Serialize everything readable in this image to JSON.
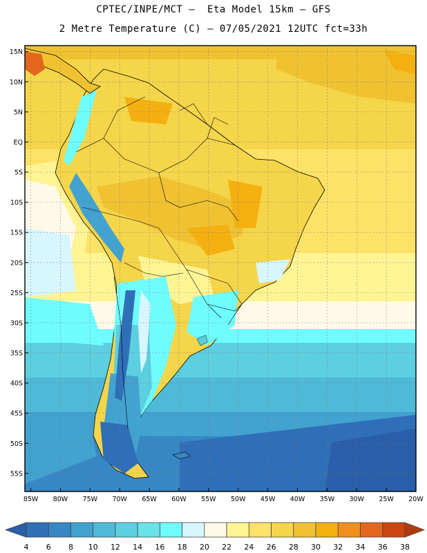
{
  "header": {
    "line1": "CPTEC/INPE/MCT –  Eta Model 15km – GFS",
    "line2": "2 Metre Temperature (C) – 07/05/2021 12UTC fct=33h"
  },
  "map": {
    "lon_range": [
      -86,
      -20
    ],
    "lat_range": [
      16,
      -58
    ],
    "lat_ticks": [
      "15N",
      "10N",
      "5N",
      "EQ",
      "5S",
      "10S",
      "15S",
      "20S",
      "25S",
      "30S",
      "35S",
      "40S",
      "45S",
      "50S",
      "55S"
    ],
    "lon_ticks": [
      "85W",
      "80W",
      "75W",
      "70W",
      "65W",
      "60W",
      "55W",
      "50W",
      "45W",
      "40W",
      "35W",
      "30W",
      "25W",
      "20W"
    ],
    "grid": true
  },
  "colorbar": {
    "labels": [
      "4",
      "6",
      "8",
      "10",
      "12",
      "14",
      "16",
      "18",
      "20",
      "22",
      "24",
      "26",
      "28",
      "30",
      "32",
      "34",
      "36",
      "38"
    ],
    "colors": [
      "#2a5ea8",
      "#2f6fb8",
      "#3787c5",
      "#42a2d0",
      "#4fbad8",
      "#5ccfe0",
      "#6ae2ea",
      "#6ffcff",
      "#d7f6ff",
      "#fffae8",
      "#fff494",
      "#fde268",
      "#f5d54a",
      "#f0c232",
      "#f4b010",
      "#f28e1e",
      "#e4661c",
      "#cc4410",
      "#b03a10"
    ]
  }
}
